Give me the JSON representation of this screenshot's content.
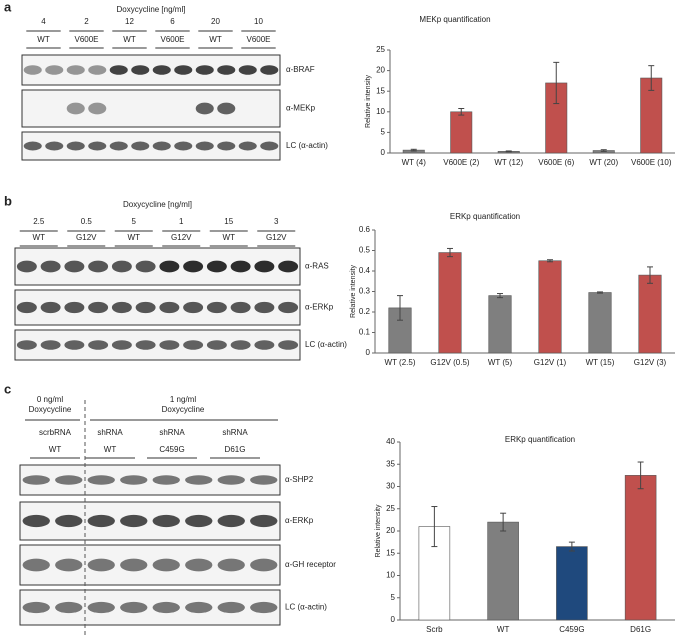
{
  "panels": [
    "a",
    "b",
    "c"
  ],
  "blots": [
    {
      "header": "Doxycycline  [ng/ml]",
      "doses": [
        "4",
        "2",
        "12",
        "6",
        "20",
        "10"
      ],
      "genotypes": [
        "WT",
        "V600E",
        "WT",
        "V600E",
        "WT",
        "V600E"
      ],
      "rows": [
        "α-BRAF",
        "α-MEKp",
        "LC (α-actin)"
      ]
    },
    {
      "header": "Doxycycline  [ng/ml]",
      "doses": [
        "2.5",
        "0.5",
        "5",
        "1",
        "15",
        "3"
      ],
      "genotypes": [
        "WT",
        "G12V",
        "WT",
        "G12V",
        "WT",
        "G12V"
      ],
      "rows": [
        "α-RAS",
        "α-ERKp",
        "LC (α-actin)"
      ]
    },
    {
      "conditions": [
        {
          "dose": "0 ng/ml",
          "drug": "Doxycycline"
        },
        {
          "dose": "1 ng/ml",
          "drug": "Doxycycline"
        }
      ],
      "groups": [
        {
          "line1": "scrbRNA",
          "line2": "WT"
        },
        {
          "line1": "shRNA",
          "line2": "WT"
        },
        {
          "line1": "shRNA",
          "line2": "C459G"
        },
        {
          "line1": "shRNA",
          "line2": "D61G"
        }
      ],
      "rows": [
        "α-SHP2",
        "α-ERKp",
        "α-GH receptor",
        "LC (α-actin)"
      ]
    }
  ],
  "chart_data": [
    {
      "type": "bar",
      "title": "MEKp quantification",
      "y_label": "Relative intensity",
      "categories": [
        "WT (4)",
        "V600E  (2)",
        "WT (12)",
        "V600E  (6)",
        "WT (20)",
        "V600E  (10)"
      ],
      "values": [
        0.7,
        10,
        0.4,
        17,
        0.6,
        18.2
      ],
      "errors": [
        0.2,
        0.8,
        0.1,
        5,
        0.2,
        3
      ],
      "colors": [
        "#7f7f7f",
        "#c0504d",
        "#7f7f7f",
        "#c0504d",
        "#7f7f7f",
        "#c0504d"
      ],
      "ylim": [
        0,
        25
      ],
      "yticks": [
        0,
        5,
        10,
        15,
        20,
        25
      ]
    },
    {
      "type": "bar",
      "title": "ERKp quantification",
      "y_label": "Relative intensity",
      "categories": [
        "WT (2.5)",
        "G12V  (0.5)",
        "WT (5)",
        "G12V  (1)",
        "WT (15)",
        "G12V  (3)"
      ],
      "values": [
        0.22,
        0.49,
        0.28,
        0.45,
        0.295,
        0.38
      ],
      "errors": [
        0.06,
        0.02,
        0.01,
        0.005,
        0.003,
        0.04
      ],
      "colors": [
        "#7f7f7f",
        "#c0504d",
        "#7f7f7f",
        "#c0504d",
        "#7f7f7f",
        "#c0504d"
      ],
      "ylim": [
        0,
        0.6
      ],
      "yticks": [
        0,
        0.1,
        0.2,
        0.3,
        0.4,
        0.5,
        0.6
      ]
    },
    {
      "type": "bar",
      "title": "ERKp quantification",
      "y_label": "Relative intensity",
      "categories": [
        "Scrb",
        "WT",
        "C459G",
        "D61G"
      ],
      "values": [
        21,
        22,
        16.5,
        32.5
      ],
      "errors": [
        4.5,
        2,
        1,
        3
      ],
      "colors": [
        "#ffffff",
        "#7f7f7f",
        "#1f497d",
        "#c0504d"
      ],
      "ylim": [
        0,
        40
      ],
      "yticks": [
        0,
        5,
        10,
        15,
        20,
        25,
        30,
        35,
        40
      ]
    }
  ]
}
